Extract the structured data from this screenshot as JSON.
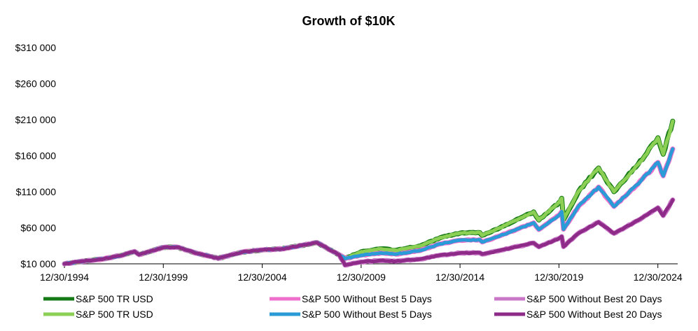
{
  "chart_data": {
    "type": "line",
    "title": "Growth of $10K",
    "xlabel": "",
    "ylabel": "",
    "ylim": [
      10000,
      310000
    ],
    "xlim": [
      "1994-12-30",
      "2025-12-31"
    ],
    "grid": false,
    "legend_position": "bottom",
    "y_ticks": [
      10000,
      60000,
      110000,
      160000,
      210000,
      260000,
      310000
    ],
    "y_tick_labels": [
      "$10 000",
      "$60 000",
      "$110 000",
      "$160 000",
      "$210 000",
      "$260 000",
      "$310 000"
    ],
    "x_ticks": [
      "1994-12-30",
      "1999-12-30",
      "2004-12-30",
      "2009-12-30",
      "2014-12-30",
      "2019-12-30",
      "2024-12-30"
    ],
    "x_tick_labels": [
      "12/30/1994",
      "12/30/1999",
      "12/30/2004",
      "12/30/2009",
      "12/30/2014",
      "12/30/2019",
      "12/30/2024"
    ],
    "series": [
      {
        "name": "S&P 500 TR USD",
        "color": "#157a15",
        "x": [
          "1994-12-30",
          "1995-12-29",
          "1996-12-31",
          "1997-12-31",
          "1998-07-17",
          "1998-10-08",
          "1999-12-31",
          "2000-09-01",
          "2001-09-21",
          "2002-10-09",
          "2003-12-31",
          "2004-12-31",
          "2005-12-30",
          "2006-12-29",
          "2007-10-09",
          "2008-11-20",
          "2009-03-09",
          "2009-12-31",
          "2010-12-31",
          "2011-10-03",
          "2012-12-31",
          "2013-12-31",
          "2014-12-31",
          "2015-12-31",
          "2016-02-11",
          "2016-12-30",
          "2017-12-29",
          "2018-09-20",
          "2018-12-24",
          "2019-12-31",
          "2020-02-19",
          "2020-03-23",
          "2020-12-31",
          "2021-12-31",
          "2022-10-12",
          "2022-12-30",
          "2023-12-29",
          "2024-12-31",
          "2025-04-08",
          "2025-09-30"
        ],
        "values": [
          10000,
          13700,
          16900,
          22500,
          27100,
          22800,
          32700,
          33200,
          24400,
          17600,
          26400,
          29300,
          30700,
          35600,
          39400,
          22500,
          17300,
          26700,
          30800,
          28700,
          35000,
          46300,
          52600,
          53300,
          49500,
          59700,
          72700,
          82000,
          70800,
          95000,
          101000,
          71200,
          111000,
          143000,
          110000,
          117000,
          148000,
          185000,
          162000,
          208000
        ]
      },
      {
        "name": "S&P 500 Without Best 5 Days",
        "color": "#ee70cc",
        "x": [
          "1994-12-30",
          "1995-12-29",
          "1996-12-31",
          "1997-12-31",
          "1998-07-17",
          "1998-10-08",
          "1999-12-31",
          "2000-09-01",
          "2001-09-21",
          "2002-10-09",
          "2003-12-31",
          "2004-12-31",
          "2005-12-30",
          "2006-12-29",
          "2007-10-09",
          "2008-11-20",
          "2009-03-09",
          "2009-12-31",
          "2010-12-31",
          "2011-10-03",
          "2012-12-31",
          "2013-12-31",
          "2014-12-31",
          "2015-12-31",
          "2016-02-11",
          "2016-12-30",
          "2017-12-29",
          "2018-09-20",
          "2018-12-24",
          "2019-12-31",
          "2020-02-19",
          "2020-03-23",
          "2020-12-31",
          "2021-12-31",
          "2022-10-12",
          "2022-12-30",
          "2023-12-29",
          "2024-12-31",
          "2025-04-08",
          "2025-09-30"
        ],
        "values": [
          10000,
          13700,
          16900,
          22500,
          27100,
          22800,
          32700,
          33200,
          24400,
          17600,
          26400,
          29300,
          30700,
          35600,
          39400,
          22500,
          17300,
          21800,
          25100,
          23400,
          28500,
          37700,
          42800,
          43400,
          40300,
          48600,
          59200,
          66800,
          57700,
          77400,
          82300,
          58000,
          90400,
          116500,
          89600,
          95300,
          120600,
          150700,
          132000,
          169400
        ]
      },
      {
        "name": "S&P 500 Without Best 20 Days",
        "color": "#c978c8",
        "x": [
          "1994-12-30",
          "1995-12-29",
          "1996-12-31",
          "1997-12-31",
          "1998-07-17",
          "1998-10-08",
          "1999-12-31",
          "2000-09-01",
          "2001-09-21",
          "2002-10-09",
          "2003-12-31",
          "2004-12-31",
          "2005-12-30",
          "2006-12-29",
          "2007-10-09",
          "2008-11-20",
          "2009-03-09",
          "2009-12-31",
          "2010-12-31",
          "2011-10-03",
          "2012-12-31",
          "2013-12-31",
          "2014-12-31",
          "2015-12-31",
          "2016-02-11",
          "2016-12-30",
          "2017-12-29",
          "2018-09-20",
          "2018-12-24",
          "2019-12-31",
          "2020-02-19",
          "2020-03-23",
          "2020-12-31",
          "2021-12-31",
          "2022-10-12",
          "2022-12-30",
          "2023-12-29",
          "2024-12-31",
          "2025-04-08",
          "2025-09-30"
        ],
        "values": [
          10000,
          13700,
          16900,
          22500,
          27100,
          22800,
          32700,
          33200,
          24400,
          17600,
          26400,
          29300,
          30700,
          35600,
          39400,
          22500,
          8200,
          12700,
          14600,
          13600,
          16600,
          22000,
          25000,
          25300,
          23500,
          28400,
          34500,
          38900,
          33600,
          45100,
          47900,
          33800,
          52700,
          67900,
          52200,
          55500,
          70300,
          87800,
          76900,
          98700
        ]
      },
      {
        "name": "S&P 500 TR USD",
        "color": "#8ccf55",
        "x": [
          "1994-12-30",
          "1995-12-29",
          "1996-12-31",
          "1997-12-31",
          "1998-07-17",
          "1998-10-08",
          "1999-12-31",
          "2000-09-01",
          "2001-09-21",
          "2002-10-09",
          "2003-12-31",
          "2004-12-31",
          "2005-12-30",
          "2006-12-29",
          "2007-10-09",
          "2008-11-20",
          "2009-03-09",
          "2009-12-31",
          "2010-12-31",
          "2011-10-03",
          "2012-12-31",
          "2013-12-31",
          "2014-12-31",
          "2015-12-31",
          "2016-02-11",
          "2016-12-30",
          "2017-12-29",
          "2018-09-20",
          "2018-12-24",
          "2019-12-31",
          "2020-02-19",
          "2020-03-23",
          "2020-12-31",
          "2021-12-31",
          "2022-10-12",
          "2022-12-30",
          "2023-12-29",
          "2024-12-31",
          "2025-04-08",
          "2025-09-30"
        ],
        "values": [
          10000,
          13700,
          16900,
          22500,
          27100,
          22800,
          32700,
          33200,
          24400,
          17600,
          26400,
          29300,
          30700,
          35600,
          39400,
          22500,
          17300,
          26700,
          30800,
          28700,
          35000,
          46300,
          52600,
          53300,
          49500,
          59700,
          72700,
          82000,
          70800,
          95000,
          101000,
          71200,
          111000,
          143000,
          110000,
          117000,
          148000,
          185000,
          162000,
          208000
        ]
      },
      {
        "name": "S&P 500 Without Best 5 Days",
        "color": "#2a9bd6",
        "x": [
          "1994-12-30",
          "1995-12-29",
          "1996-12-31",
          "1997-12-31",
          "1998-07-17",
          "1998-10-08",
          "1999-12-31",
          "2000-09-01",
          "2001-09-21",
          "2002-10-09",
          "2003-12-31",
          "2004-12-31",
          "2005-12-30",
          "2006-12-29",
          "2007-10-09",
          "2008-11-20",
          "2009-03-09",
          "2009-12-31",
          "2010-12-31",
          "2011-10-03",
          "2012-12-31",
          "2013-12-31",
          "2014-12-31",
          "2015-12-31",
          "2016-02-11",
          "2016-12-30",
          "2017-12-29",
          "2018-09-20",
          "2018-12-24",
          "2019-12-31",
          "2020-02-19",
          "2020-03-23",
          "2020-12-31",
          "2021-12-31",
          "2022-10-12",
          "2022-12-30",
          "2023-12-29",
          "2024-12-31",
          "2025-04-08",
          "2025-09-30"
        ],
        "values": [
          10000,
          13700,
          16900,
          22500,
          27100,
          22800,
          32700,
          33200,
          24400,
          17600,
          26400,
          29300,
          30700,
          35600,
          39400,
          22500,
          17300,
          21800,
          25100,
          23400,
          28500,
          37700,
          42800,
          43400,
          40300,
          48600,
          59200,
          66800,
          57700,
          77400,
          82300,
          58000,
          90400,
          116500,
          89600,
          95300,
          120600,
          150700,
          132000,
          169400
        ]
      },
      {
        "name": "S&P 500 Without Best 20 Days",
        "color": "#8e2a88",
        "x": [
          "1994-12-30",
          "1995-12-29",
          "1996-12-31",
          "1997-12-31",
          "1998-07-17",
          "1998-10-08",
          "1999-12-31",
          "2000-09-01",
          "2001-09-21",
          "2002-10-09",
          "2003-12-31",
          "2004-12-31",
          "2005-12-30",
          "2006-12-29",
          "2007-10-09",
          "2008-11-20",
          "2009-03-09",
          "2009-12-31",
          "2010-12-31",
          "2011-10-03",
          "2012-12-31",
          "2013-12-31",
          "2014-12-31",
          "2015-12-31",
          "2016-02-11",
          "2016-12-30",
          "2017-12-29",
          "2018-09-20",
          "2018-12-24",
          "2019-12-31",
          "2020-02-19",
          "2020-03-23",
          "2020-12-31",
          "2021-12-31",
          "2022-10-12",
          "2022-12-30",
          "2023-12-29",
          "2024-12-31",
          "2025-04-08",
          "2025-09-30"
        ],
        "values": [
          10000,
          13700,
          16900,
          22500,
          27100,
          22800,
          32700,
          33200,
          24400,
          17600,
          26400,
          29300,
          30700,
          35600,
          39400,
          22500,
          8200,
          12700,
          14600,
          13600,
          16600,
          22000,
          25000,
          25300,
          23500,
          28400,
          34500,
          38900,
          33600,
          45100,
          47900,
          33800,
          52700,
          67900,
          52200,
          55500,
          70300,
          87800,
          76900,
          98700
        ]
      }
    ]
  }
}
